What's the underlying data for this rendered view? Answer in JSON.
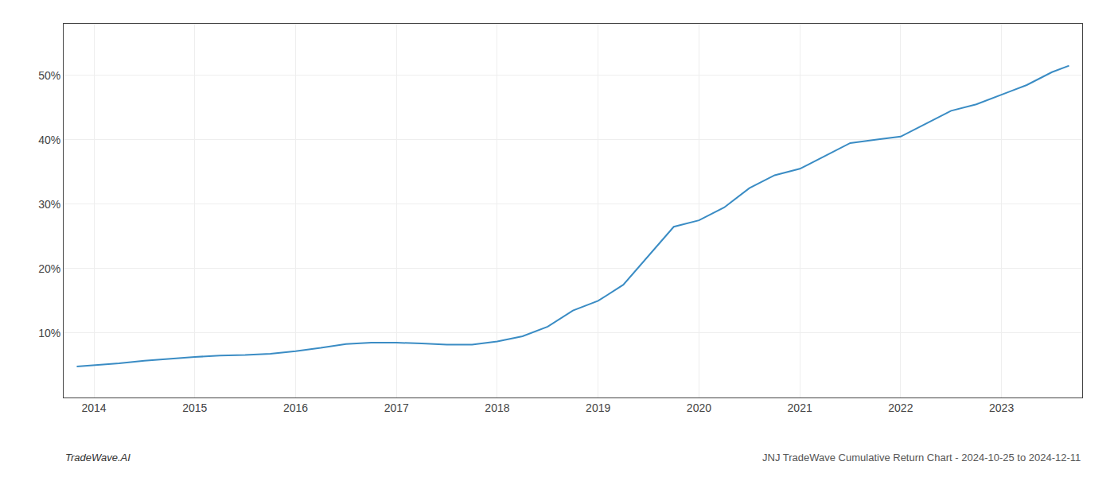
{
  "chart_data": {
    "type": "line",
    "annotations": [
      "TradeWave.AI",
      "JNJ TradeWave Cumulative Return Chart - 2024-10-25 to 2024-12-11"
    ],
    "color": "#3a8cc4",
    "x": [
      2013.83,
      2014.0,
      2014.25,
      2014.5,
      2014.75,
      2015.0,
      2015.25,
      2015.5,
      2015.75,
      2016.0,
      2016.25,
      2016.5,
      2016.75,
      2017.0,
      2017.25,
      2017.5,
      2017.75,
      2018.0,
      2018.25,
      2018.5,
      2018.75,
      2019.0,
      2019.25,
      2019.5,
      2019.75,
      2020.0,
      2020.25,
      2020.5,
      2020.75,
      2021.0,
      2021.25,
      2021.5,
      2021.75,
      2022.0,
      2022.25,
      2022.5,
      2022.75,
      2023.0,
      2023.25,
      2023.5,
      2023.67
    ],
    "values": [
      4.8,
      5.0,
      5.3,
      5.7,
      6.0,
      6.3,
      6.5,
      6.6,
      6.8,
      7.2,
      7.7,
      8.3,
      8.5,
      8.5,
      8.4,
      8.2,
      8.2,
      8.7,
      9.5,
      11.0,
      13.5,
      15.0,
      17.5,
      22.0,
      26.5,
      27.5,
      29.5,
      32.5,
      34.5,
      35.5,
      37.5,
      39.5,
      40.0,
      40.5,
      42.5,
      44.5,
      45.5,
      47.0,
      48.5,
      50.5,
      51.5
    ],
    "xlim": [
      2013.7,
      2023.8
    ],
    "xticks": [
      2014,
      2015,
      2016,
      2017,
      2018,
      2019,
      2020,
      2021,
      2022,
      2023
    ],
    "ylim": [
      0,
      58
    ],
    "yticks": [
      {
        "value": 10,
        "label": "10%"
      },
      {
        "value": 20,
        "label": "20%"
      },
      {
        "value": 30,
        "label": "30%"
      },
      {
        "value": 40,
        "label": "40%"
      },
      {
        "value": 50,
        "label": "50%"
      }
    ],
    "grid": true
  }
}
